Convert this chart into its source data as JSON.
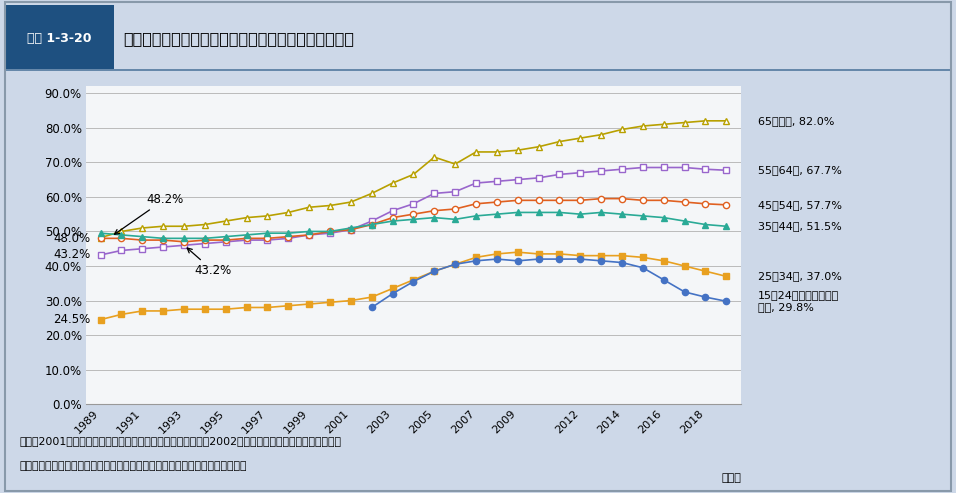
{
  "header_label": "図表 1-3-20",
  "header_title": "非正規雇用労働者の割合の推移（女性・年齢階級別）",
  "footnote1": "資料：2001年以前は総務省統計局「労働力調査特別調査」、2002年以降は「労働力調査　詳細集計」",
  "footnote2": "（注）　「非正規の職員・従業員」が役員を除く雇用者に占める割合である。",
  "xlabel": "（年）",
  "background_color": "#cdd8e8",
  "plot_bg": "#f4f6f8",
  "header_bg": "#ffffff",
  "header_label_bg": "#1e5080",
  "border_color": "#6688aa",
  "yticks": [
    0,
    10,
    20,
    30,
    40,
    50,
    60,
    70,
    80,
    90
  ],
  "ytick_labels": [
    "0.0%",
    "10.0%",
    "20.0%",
    "30.0%",
    "40.0%",
    "50.0%",
    "60.0%",
    "70.0%",
    "80.0%",
    "90.0%"
  ],
  "xtick_years": [
    1989,
    1991,
    1993,
    1995,
    1997,
    1999,
    2001,
    2003,
    2005,
    2007,
    2009,
    2012,
    2014,
    2016,
    2018
  ],
  "series": [
    {
      "name": "65歳以上, 82.0%",
      "color": "#b8a000",
      "marker": "^",
      "filled": false,
      "years": [
        1989,
        1990,
        1991,
        1992,
        1993,
        1994,
        1995,
        1996,
        1997,
        1998,
        1999,
        2000,
        2001,
        2002,
        2003,
        2004,
        2005,
        2006,
        2007,
        2008,
        2009,
        2010,
        2011,
        2012,
        2013,
        2014,
        2015,
        2016,
        2017,
        2018,
        2019
      ],
      "values": [
        48.2,
        50.0,
        51.0,
        51.5,
        51.5,
        52.0,
        53.0,
        54.0,
        54.5,
        55.5,
        57.0,
        57.5,
        58.5,
        61.0,
        64.0,
        66.5,
        71.5,
        69.5,
        73.0,
        73.0,
        73.5,
        74.5,
        76.0,
        77.0,
        78.0,
        79.5,
        80.5,
        81.0,
        81.5,
        82.0,
        82.0
      ]
    },
    {
      "name": "55－64歳, 67.7%",
      "color": "#9966cc",
      "marker": "s",
      "filled": false,
      "years": [
        1989,
        1990,
        1991,
        1992,
        1993,
        1994,
        1995,
        1996,
        1997,
        1998,
        1999,
        2000,
        2001,
        2002,
        2003,
        2004,
        2005,
        2006,
        2007,
        2008,
        2009,
        2010,
        2011,
        2012,
        2013,
        2014,
        2015,
        2016,
        2017,
        2018,
        2019
      ],
      "values": [
        43.2,
        44.5,
        45.0,
        45.5,
        46.0,
        46.5,
        47.0,
        47.5,
        47.5,
        48.0,
        49.0,
        49.5,
        50.5,
        53.0,
        56.0,
        58.0,
        61.0,
        61.5,
        64.0,
        64.5,
        65.0,
        65.5,
        66.5,
        67.0,
        67.5,
        68.0,
        68.5,
        68.5,
        68.5,
        68.0,
        67.7
      ]
    },
    {
      "name": "45－54歳, 57.7%",
      "color": "#e06020",
      "marker": "o",
      "filled": false,
      "years": [
        1989,
        1990,
        1991,
        1992,
        1993,
        1994,
        1995,
        1996,
        1997,
        1998,
        1999,
        2000,
        2001,
        2002,
        2003,
        2004,
        2005,
        2006,
        2007,
        2008,
        2009,
        2010,
        2011,
        2012,
        2013,
        2014,
        2015,
        2016,
        2017,
        2018,
        2019
      ],
      "values": [
        48.0,
        48.0,
        47.5,
        47.5,
        47.0,
        47.5,
        47.5,
        48.0,
        48.0,
        48.5,
        49.0,
        50.0,
        50.5,
        52.0,
        54.0,
        55.0,
        56.0,
        56.5,
        58.0,
        58.5,
        59.0,
        59.0,
        59.0,
        59.0,
        59.5,
        59.5,
        59.0,
        59.0,
        58.5,
        58.0,
        57.7
      ]
    },
    {
      "name": "35－44歳, 51.5%",
      "color": "#2aaa96",
      "marker": "^",
      "filled": true,
      "years": [
        1989,
        1990,
        1991,
        1992,
        1993,
        1994,
        1995,
        1996,
        1997,
        1998,
        1999,
        2000,
        2001,
        2002,
        2003,
        2004,
        2005,
        2006,
        2007,
        2008,
        2009,
        2010,
        2011,
        2012,
        2013,
        2014,
        2015,
        2016,
        2017,
        2018,
        2019
      ],
      "values": [
        49.5,
        49.0,
        48.5,
        48.0,
        48.0,
        48.0,
        48.5,
        49.0,
        49.5,
        49.5,
        50.0,
        50.0,
        51.0,
        52.0,
        53.0,
        53.5,
        54.0,
        53.5,
        54.5,
        55.0,
        55.5,
        55.5,
        55.5,
        55.0,
        55.5,
        55.0,
        54.5,
        54.0,
        53.0,
        52.0,
        51.5
      ]
    },
    {
      "name": "25－34歳, 37.0%",
      "color": "#e8a020",
      "marker": "s",
      "filled": true,
      "years": [
        1989,
        1990,
        1991,
        1992,
        1993,
        1994,
        1995,
        1996,
        1997,
        1998,
        1999,
        2000,
        2001,
        2002,
        2003,
        2004,
        2005,
        2006,
        2007,
        2008,
        2009,
        2010,
        2011,
        2012,
        2013,
        2014,
        2015,
        2016,
        2017,
        2018,
        2019
      ],
      "values": [
        24.5,
        26.0,
        27.0,
        27.0,
        27.5,
        27.5,
        27.5,
        28.0,
        28.0,
        28.5,
        29.0,
        29.5,
        30.0,
        31.0,
        33.5,
        36.0,
        38.5,
        40.5,
        42.5,
        43.5,
        44.0,
        43.5,
        43.5,
        43.0,
        43.0,
        43.0,
        42.5,
        41.5,
        40.0,
        38.5,
        37.0
      ]
    },
    {
      "name": "15－24歳（在学者を除く）, 29.8%",
      "color": "#4472c4",
      "marker": "o",
      "filled": true,
      "years": [
        2002,
        2003,
        2004,
        2005,
        2006,
        2007,
        2008,
        2009,
        2010,
        2011,
        2012,
        2013,
        2014,
        2015,
        2016,
        2017,
        2018,
        2019
      ],
      "values": [
        28.0,
        32.0,
        35.5,
        38.5,
        40.5,
        41.5,
        42.0,
        41.5,
        42.0,
        42.0,
        42.0,
        41.5,
        41.0,
        39.5,
        36.0,
        32.5,
        31.0,
        29.8
      ]
    }
  ],
  "right_labels": [
    {
      "text": "65歳以上, 82.0%",
      "y": 82.0
    },
    {
      "text": "55－64歳, 67.7%",
      "y": 67.7
    },
    {
      "text": "45－54歳, 57.7%",
      "y": 57.7
    },
    {
      "text": "35－44歳, 51.5%",
      "y": 51.5
    },
    {
      "text": "25－34歳, 37.0%",
      "y": 37.0
    },
    {
      "text": "15－24歳（在学者を除\nく）, 29.8%",
      "y": 29.8
    }
  ]
}
